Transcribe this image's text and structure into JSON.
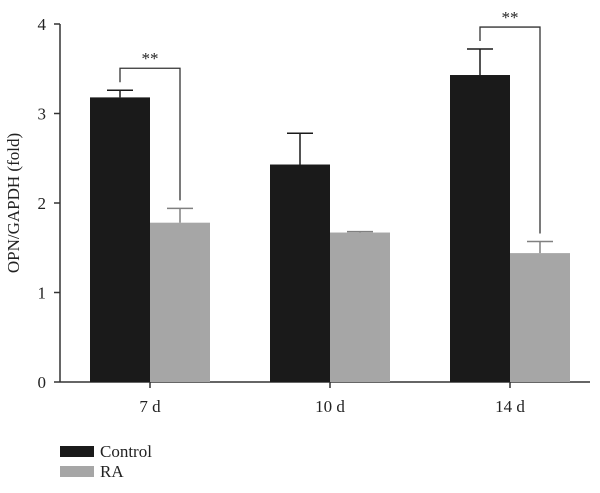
{
  "chart_data": {
    "type": "bar",
    "categories": [
      "7 d",
      "10 d",
      "14 d"
    ],
    "series": [
      {
        "name": "Control",
        "color": "#1a1a1a",
        "values": [
          3.18,
          2.43,
          3.43
        ],
        "errors": [
          0.08,
          0.35,
          0.29
        ]
      },
      {
        "name": "RA",
        "color": "#a6a6a6",
        "values": [
          1.78,
          1.67,
          1.44
        ],
        "errors": [
          0.16,
          0.01,
          0.13
        ]
      }
    ],
    "ylabel": "OPN/GAPDH (fold)",
    "xlabel": "",
    "title": "",
    "ylim": [
      0,
      4
    ],
    "yticks": [
      0,
      1,
      2,
      3,
      4
    ],
    "grid": false,
    "legend_position": "bottom-left",
    "annotations": [
      {
        "category": "7 d",
        "text": "**"
      },
      {
        "category": "14 d",
        "text": "**"
      }
    ]
  }
}
